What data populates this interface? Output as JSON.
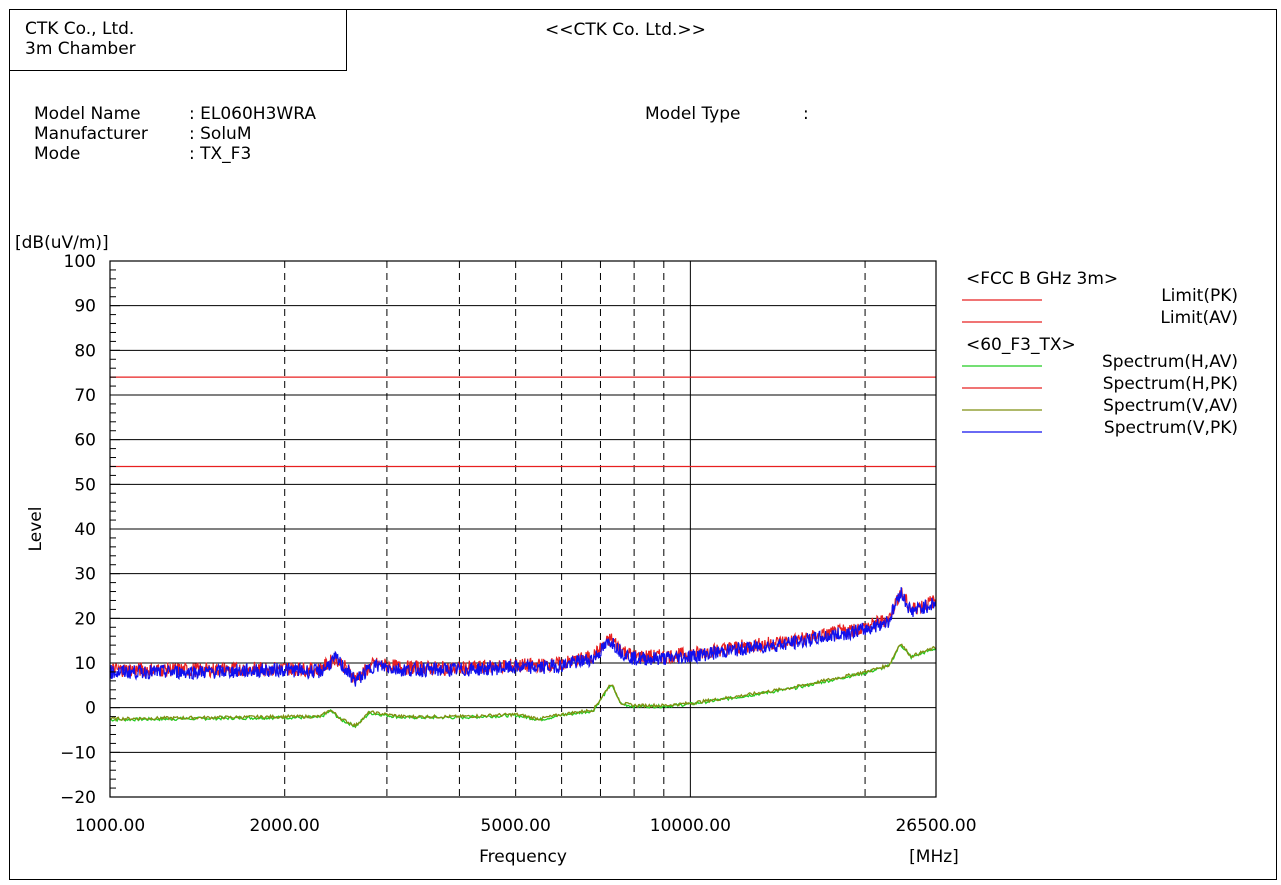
{
  "header": {
    "company_line1": "CTK Co., Ltd.",
    "company_line2": "3m Chamber",
    "title": "<<CTK Co. Ltd.>>"
  },
  "info": {
    "model_name_label": "Model Name",
    "model_name_value": ": EL060H3WRA",
    "manufacturer_label": "Manufacturer",
    "manufacturer_value": ": SoluM",
    "mode_label": "Mode",
    "mode_value": ": TX_F3",
    "model_type_label": "Model Type",
    "model_type_value": ":"
  },
  "chart_data": {
    "type": "line",
    "ylabel": "Level",
    "yunit": "[dB(uV/m)]",
    "xlabel": "Frequency",
    "xunit": "[MHz]",
    "xscale": "log",
    "xlim": [
      1000,
      26500
    ],
    "ylim": [
      -20,
      100
    ],
    "ytick_labels": [
      "100",
      "90",
      "80",
      "70",
      "60",
      "50",
      "40",
      "30",
      "20",
      "10",
      "0",
      "−10",
      "−20"
    ],
    "ytick_values": [
      100,
      90,
      80,
      70,
      60,
      50,
      40,
      30,
      20,
      10,
      0,
      -10,
      -20
    ],
    "xtick_labels": [
      "1000.00",
      "2000.00",
      "5000.00",
      "10000.00",
      "26500.00"
    ],
    "xtick_values": [
      1000,
      2000,
      5000,
      10000,
      26500
    ],
    "grid": true,
    "x_dashed_grid": [
      2000,
      3000,
      4000,
      5000,
      6000,
      7000,
      8000,
      9000,
      20000
    ],
    "x_solid_grid": [
      10000
    ],
    "legend_position": "right",
    "legend_groups": [
      {
        "title": "<FCC B GHz 3m>",
        "entries": [
          {
            "name": "Limit(PK)",
            "color": "#e82020"
          },
          {
            "name": "Limit(AV)",
            "color": "#e82020"
          }
        ]
      },
      {
        "title": "<60_F3_TX>",
        "entries": [
          {
            "name": "Spectrum(H,AV)",
            "color": "#22cc22"
          },
          {
            "name": "Spectrum(H,PK)",
            "color": "#e82020"
          },
          {
            "name": "Spectrum(V,AV)",
            "color": "#7f8f10"
          },
          {
            "name": "Spectrum(V,PK)",
            "color": "#1010ee"
          }
        ]
      }
    ],
    "limits": [
      {
        "name": "Limit(PK)",
        "value": 74,
        "color": "#e82020"
      },
      {
        "name": "Limit(AV)",
        "value": 54,
        "color": "#e82020"
      }
    ],
    "series": [
      {
        "name": "Spectrum(H,PK)",
        "color": "#e82020",
        "x": [
          1000,
          1500,
          2000,
          2300,
          2450,
          2650,
          2850,
          3200,
          4000,
          5000,
          5500,
          6000,
          6800,
          7300,
          7600,
          8000,
          9000,
          10000,
          12000,
          15000,
          20000,
          22000,
          23000,
          24000,
          26500
        ],
        "y": [
          8.5,
          8.5,
          8.8,
          8.5,
          11.2,
          6.5,
          9.8,
          9,
          8.8,
          9.5,
          9.5,
          9.8,
          11.5,
          15.5,
          13,
          11.5,
          11.5,
          12,
          13.5,
          15,
          18,
          20,
          26,
          22,
          24
        ]
      },
      {
        "name": "Spectrum(V,PK)",
        "color": "#1010ee",
        "x": [
          1000,
          1500,
          2000,
          2300,
          2450,
          2650,
          2850,
          3200,
          4000,
          5000,
          5500,
          6000,
          6800,
          7300,
          7600,
          8000,
          9000,
          10000,
          12000,
          15000,
          20000,
          22000,
          23000,
          24000,
          26500
        ],
        "y": [
          8,
          8,
          8.5,
          8,
          11,
          6,
          9.5,
          8.5,
          8.5,
          9,
          9,
          9.5,
          11,
          15,
          12.5,
          11,
          11,
          11.5,
          13,
          14.5,
          17.5,
          19.5,
          26,
          21.5,
          23.5
        ]
      },
      {
        "name": "Spectrum(V,AV)",
        "color": "#7f8f10",
        "x": [
          1000,
          1500,
          2000,
          2300,
          2400,
          2500,
          2650,
          2800,
          3200,
          4000,
          5000,
          5500,
          6000,
          6800,
          7300,
          7600,
          8000,
          9000,
          10000,
          12000,
          15000,
          20000,
          22000,
          23000,
          24000,
          26500
        ],
        "y": [
          -2.5,
          -2.2,
          -2,
          -2,
          -0.5,
          -2.5,
          -4,
          -1,
          -2,
          -2,
          -1.5,
          -2.5,
          -1.5,
          -0.5,
          5.5,
          1,
          0.5,
          0.5,
          1,
          2.5,
          4.5,
          8,
          9.5,
          14.5,
          11.5,
          13.5
        ]
      },
      {
        "name": "Spectrum(H,AV)",
        "color": "#22cc22",
        "x": [
          1000,
          1500,
          2000,
          2300,
          2400,
          2500,
          2650,
          2800,
          3200,
          4000,
          5000,
          5500,
          6000,
          6800,
          7300,
          7600,
          8000,
          9000,
          10000,
          12000,
          15000,
          20000,
          22000,
          23000,
          24000,
          26500
        ],
        "y": [
          -2.7,
          -2.4,
          -2.2,
          -2.2,
          -0.7,
          -2.7,
          -4.2,
          -1.2,
          -2.2,
          -2.2,
          -1.7,
          -2.7,
          -1.7,
          -0.7,
          5.2,
          0.8,
          0.3,
          0.3,
          0.8,
          2.3,
          4.3,
          7.8,
          9.3,
          14.2,
          11.3,
          13.3
        ]
      }
    ]
  }
}
